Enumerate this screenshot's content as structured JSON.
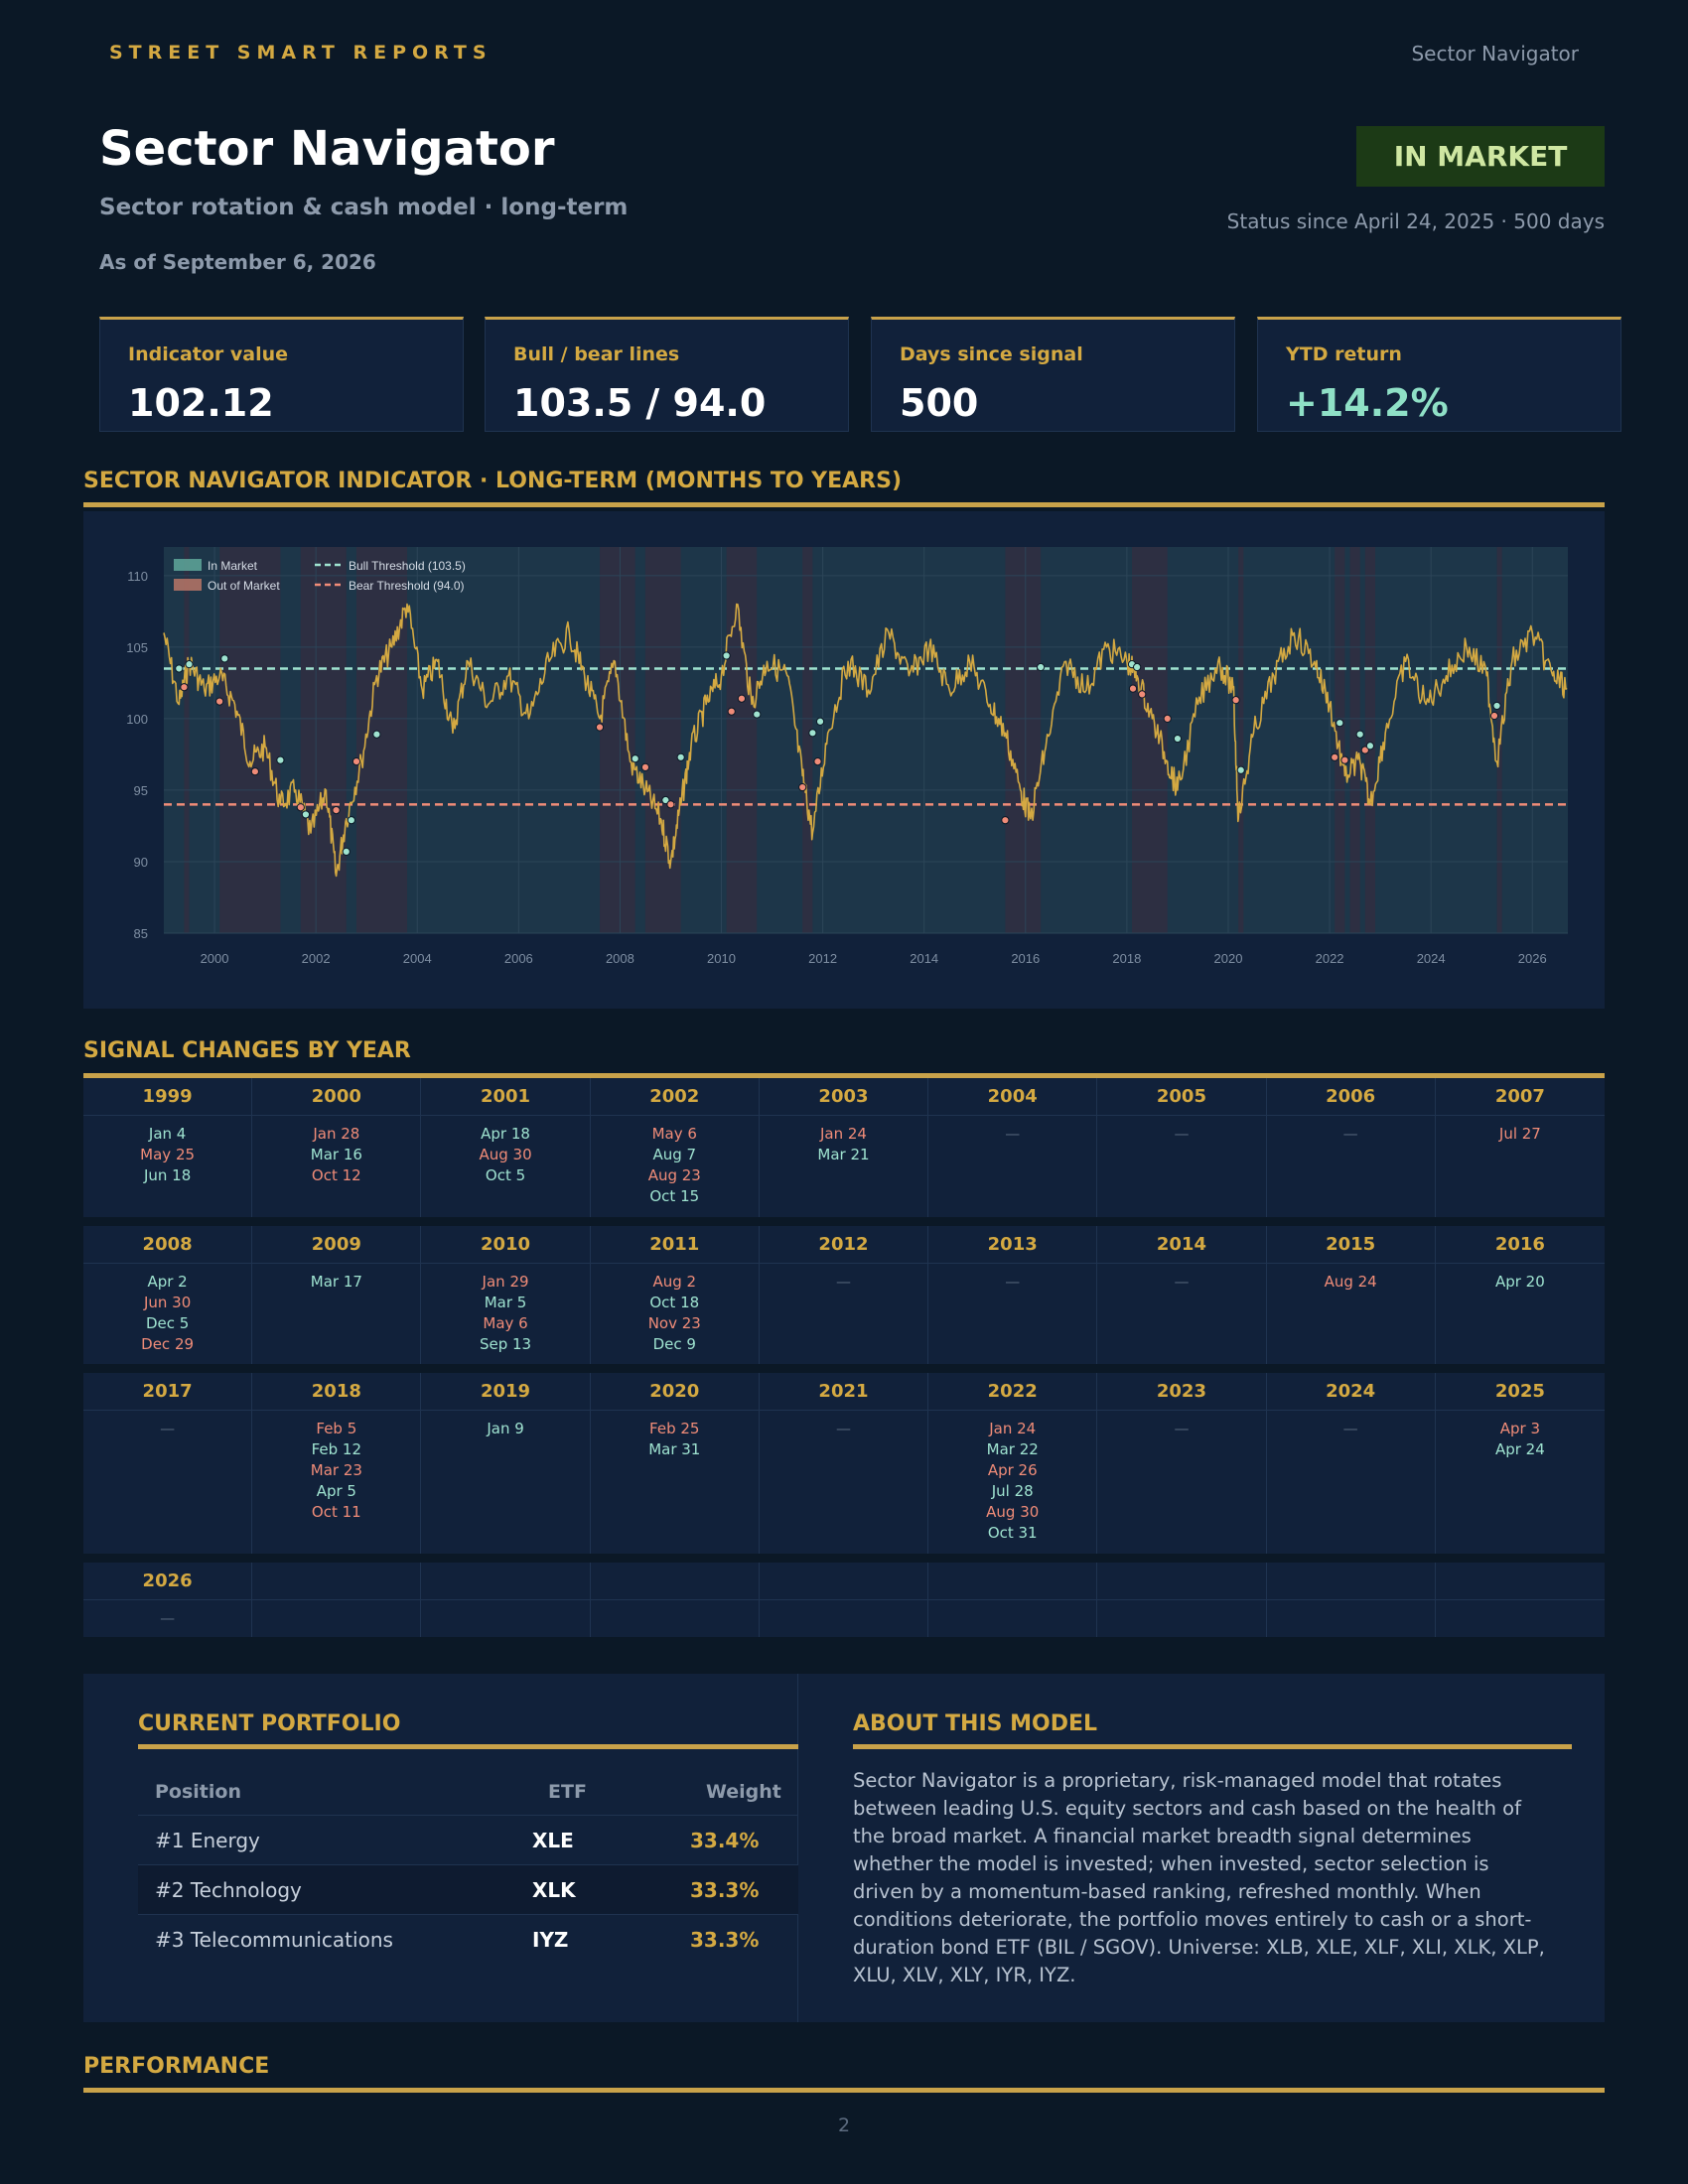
{
  "header": {
    "brand": "STREET SMART REPORTS",
    "top_right": "Sector Navigator",
    "title": "Sector Navigator",
    "subtitle": "Sector rotation & cash model · long-term",
    "as_of": "As of September 6, 2026",
    "status": "IN MARKET",
    "status_since": "Status since April 24, 2025 · 500 days"
  },
  "kpis": [
    {
      "label": "Indicator value",
      "value": "102.12"
    },
    {
      "label": "Bull / bear lines",
      "value": "103.5 / 94.0"
    },
    {
      "label": "Days since signal",
      "value": "500"
    },
    {
      "label": "YTD return",
      "value": "+14.2%"
    }
  ],
  "chart_section_title": "SECTOR NAVIGATOR INDICATOR · LONG-TERM (MONTHS TO YEARS)",
  "chart_data": {
    "type": "line",
    "title": "",
    "xlabel": "",
    "ylabel": "",
    "xlim": [
      1999,
      2026.7
    ],
    "ylim": [
      85,
      112
    ],
    "x_ticks": [
      "2000",
      "2002",
      "2004",
      "2006",
      "2008",
      "2010",
      "2012",
      "2014",
      "2016",
      "2018",
      "2020",
      "2022",
      "2024",
      "2026"
    ],
    "y_ticks": [
      "85",
      "90",
      "95",
      "100",
      "105",
      "110"
    ],
    "grid": true,
    "legend": {
      "placement": "top-left",
      "entries": [
        "In Market",
        "Out of Market",
        "Bull Threshold (103.5)",
        "Bear Threshold (94.0)"
      ]
    },
    "bull_threshold": 103.5,
    "bear_threshold": 94.0,
    "series": [
      {
        "x": [
          1999.0,
          1999.3,
          1999.5,
          1999.8,
          2000.1,
          2000.4,
          2000.7,
          2001.0,
          2001.3,
          2001.6,
          2001.9,
          2002.2,
          2002.4,
          2002.6,
          2002.9,
          2003.2,
          2003.5,
          2003.8,
          2004.1,
          2004.4,
          2004.7,
          2005.0,
          2005.4,
          2005.8,
          2006.2,
          2006.6,
          2007.0,
          2007.3,
          2007.6,
          2007.9,
          2008.2,
          2008.5,
          2008.8,
          2009.0,
          2009.2,
          2009.4,
          2009.7,
          2010.0,
          2010.3,
          2010.6,
          2010.9,
          2011.3,
          2011.6,
          2011.8,
          2012.1,
          2012.5,
          2012.9,
          2013.3,
          2013.7,
          2014.1,
          2014.5,
          2014.9,
          2015.3,
          2015.6,
          2015.9,
          2016.1,
          2016.4,
          2016.8,
          2017.2,
          2017.6,
          2018.0,
          2018.2,
          2018.5,
          2018.8,
          2019.0,
          2019.4,
          2019.8,
          2020.1,
          2020.2,
          2020.5,
          2020.9,
          2021.3,
          2021.7,
          2022.0,
          2022.3,
          2022.6,
          2022.8,
          2023.1,
          2023.5,
          2023.9,
          2024.3,
          2024.7,
          2025.1,
          2025.3,
          2025.6,
          2026.0,
          2026.4,
          2026.68
        ],
        "y": [
          106,
          101,
          104,
          102,
          103,
          101,
          97,
          98,
          94,
          95,
          92,
          95,
          89,
          93,
          97,
          103,
          105,
          108,
          102,
          104,
          99,
          104,
          101,
          103,
          100,
          104,
          106,
          103,
          100,
          104,
          97,
          95,
          93,
          90,
          94,
          98,
          101,
          103,
          108,
          101,
          104,
          103,
          96,
          92,
          99,
          104,
          102,
          106,
          103,
          105,
          102,
          104,
          101,
          99,
          95,
          93,
          98,
          104,
          102,
          105,
          104,
          103,
          100,
          97,
          95,
          101,
          104,
          102,
          93,
          99,
          103,
          106,
          104,
          101,
          96,
          97,
          94,
          99,
          104,
          101,
          103,
          105,
          103,
          97,
          104,
          106,
          103,
          102.12
        ]
      }
    ],
    "out_of_market_periods": [
      [
        1999.4,
        1999.5
      ],
      [
        2000.1,
        2001.3
      ],
      [
        2001.7,
        2002.6
      ],
      [
        2002.8,
        2003.8
      ],
      [
        2007.6,
        2008.3
      ],
      [
        2008.5,
        2009.2
      ],
      [
        2010.1,
        2010.7
      ],
      [
        2011.6,
        2011.8
      ],
      [
        2015.6,
        2016.3
      ],
      [
        2018.1,
        2018.8
      ],
      [
        2020.2,
        2020.3
      ],
      [
        2022.1,
        2022.3
      ],
      [
        2022.4,
        2022.6
      ],
      [
        2022.7,
        2022.9
      ],
      [
        2025.3,
        2025.4
      ]
    ],
    "signal_markers": [
      {
        "x": 1999.3,
        "y": 103.5,
        "type": "bull"
      },
      {
        "x": 1999.4,
        "y": 102.2,
        "type": "bear"
      },
      {
        "x": 1999.5,
        "y": 103.8,
        "type": "bull"
      },
      {
        "x": 2000.1,
        "y": 101.2,
        "type": "bear"
      },
      {
        "x": 2000.2,
        "y": 104.2,
        "type": "bull"
      },
      {
        "x": 2000.8,
        "y": 96.3,
        "type": "bear"
      },
      {
        "x": 2001.3,
        "y": 97.1,
        "type": "bull"
      },
      {
        "x": 2001.7,
        "y": 93.8,
        "type": "bear"
      },
      {
        "x": 2001.8,
        "y": 93.3,
        "type": "bull"
      },
      {
        "x": 2002.4,
        "y": 93.6,
        "type": "bear"
      },
      {
        "x": 2002.6,
        "y": 90.7,
        "type": "bull"
      },
      {
        "x": 2002.7,
        "y": 92.9,
        "type": "bull"
      },
      {
        "x": 2002.8,
        "y": 97.0,
        "type": "bear"
      },
      {
        "x": 2003.2,
        "y": 98.9,
        "type": "bull"
      },
      {
        "x": 2007.6,
        "y": 99.4,
        "type": "bear"
      },
      {
        "x": 2008.3,
        "y": 97.2,
        "type": "bull"
      },
      {
        "x": 2008.5,
        "y": 96.6,
        "type": "bear"
      },
      {
        "x": 2008.9,
        "y": 94.3,
        "type": "bull"
      },
      {
        "x": 2009.0,
        "y": 94.0,
        "type": "bear"
      },
      {
        "x": 2009.2,
        "y": 97.3,
        "type": "bull"
      },
      {
        "x": 2010.1,
        "y": 104.4,
        "type": "bull"
      },
      {
        "x": 2010.2,
        "y": 100.5,
        "type": "bear"
      },
      {
        "x": 2010.4,
        "y": 101.4,
        "type": "bear"
      },
      {
        "x": 2010.7,
        "y": 100.3,
        "type": "bull"
      },
      {
        "x": 2011.6,
        "y": 95.2,
        "type": "bear"
      },
      {
        "x": 2011.8,
        "y": 99.0,
        "type": "bull"
      },
      {
        "x": 2011.9,
        "y": 97.0,
        "type": "bear"
      },
      {
        "x": 2011.95,
        "y": 99.8,
        "type": "bull"
      },
      {
        "x": 2015.6,
        "y": 92.9,
        "type": "bear"
      },
      {
        "x": 2016.3,
        "y": 103.6,
        "type": "bull"
      },
      {
        "x": 2018.1,
        "y": 103.8,
        "type": "bull"
      },
      {
        "x": 2018.12,
        "y": 102.1,
        "type": "bear"
      },
      {
        "x": 2018.2,
        "y": 103.6,
        "type": "bull"
      },
      {
        "x": 2018.3,
        "y": 101.7,
        "type": "bear"
      },
      {
        "x": 2018.8,
        "y": 100.0,
        "type": "bear"
      },
      {
        "x": 2019.0,
        "y": 98.6,
        "type": "bull"
      },
      {
        "x": 2020.15,
        "y": 101.3,
        "type": "bear"
      },
      {
        "x": 2020.25,
        "y": 96.4,
        "type": "bull"
      },
      {
        "x": 2022.1,
        "y": 97.3,
        "type": "bear"
      },
      {
        "x": 2022.2,
        "y": 99.7,
        "type": "bull"
      },
      {
        "x": 2022.3,
        "y": 97.1,
        "type": "bear"
      },
      {
        "x": 2022.6,
        "y": 98.9,
        "type": "bull"
      },
      {
        "x": 2022.7,
        "y": 97.8,
        "type": "bear"
      },
      {
        "x": 2022.8,
        "y": 98.1,
        "type": "bull"
      },
      {
        "x": 2025.25,
        "y": 100.2,
        "type": "bear"
      },
      {
        "x": 2025.3,
        "y": 100.9,
        "type": "bull"
      }
    ]
  },
  "signals_section_title": "SIGNAL CHANGES BY YEAR",
  "signal_rows": [
    [
      {
        "year": "1999",
        "dates": [
          {
            "t": "Jan 4",
            "k": "bull"
          },
          {
            "t": "May 25",
            "k": "bear"
          },
          {
            "t": "Jun 18",
            "k": "bull"
          }
        ]
      },
      {
        "year": "2000",
        "dates": [
          {
            "t": "Jan 28",
            "k": "bear"
          },
          {
            "t": "Mar 16",
            "k": "bull"
          },
          {
            "t": "Oct 12",
            "k": "bear"
          }
        ]
      },
      {
        "year": "2001",
        "dates": [
          {
            "t": "Apr 18",
            "k": "bull"
          },
          {
            "t": "Aug 30",
            "k": "bear"
          },
          {
            "t": "Oct 5",
            "k": "bull"
          }
        ]
      },
      {
        "year": "2002",
        "dates": [
          {
            "t": "May 6",
            "k": "bear"
          },
          {
            "t": "Aug 7",
            "k": "bull"
          },
          {
            "t": "Aug 23",
            "k": "bear"
          },
          {
            "t": "Oct 15",
            "k": "bull"
          }
        ]
      },
      {
        "year": "2003",
        "dates": [
          {
            "t": "Jan 24",
            "k": "bear"
          },
          {
            "t": "Mar 21",
            "k": "bull"
          }
        ]
      },
      {
        "year": "2004",
        "dates": [
          {
            "t": "—",
            "k": "none"
          }
        ]
      },
      {
        "year": "2005",
        "dates": [
          {
            "t": "—",
            "k": "none"
          }
        ]
      },
      {
        "year": "2006",
        "dates": [
          {
            "t": "—",
            "k": "none"
          }
        ]
      },
      {
        "year": "2007",
        "dates": [
          {
            "t": "Jul 27",
            "k": "bear"
          }
        ]
      }
    ],
    [
      {
        "year": "2008",
        "dates": [
          {
            "t": "Apr 2",
            "k": "bull"
          },
          {
            "t": "Jun 30",
            "k": "bear"
          },
          {
            "t": "Dec 5",
            "k": "bull"
          },
          {
            "t": "Dec 29",
            "k": "bear"
          }
        ]
      },
      {
        "year": "2009",
        "dates": [
          {
            "t": "Mar 17",
            "k": "bull"
          }
        ]
      },
      {
        "year": "2010",
        "dates": [
          {
            "t": "Jan 29",
            "k": "bear"
          },
          {
            "t": "Mar 5",
            "k": "bull"
          },
          {
            "t": "May 6",
            "k": "bear"
          },
          {
            "t": "Sep 13",
            "k": "bull"
          }
        ]
      },
      {
        "year": "2011",
        "dates": [
          {
            "t": "Aug 2",
            "k": "bear"
          },
          {
            "t": "Oct 18",
            "k": "bull"
          },
          {
            "t": "Nov 23",
            "k": "bear"
          },
          {
            "t": "Dec 9",
            "k": "bull"
          }
        ]
      },
      {
        "year": "2012",
        "dates": [
          {
            "t": "—",
            "k": "none"
          }
        ]
      },
      {
        "year": "2013",
        "dates": [
          {
            "t": "—",
            "k": "none"
          }
        ]
      },
      {
        "year": "2014",
        "dates": [
          {
            "t": "—",
            "k": "none"
          }
        ]
      },
      {
        "year": "2015",
        "dates": [
          {
            "t": "Aug 24",
            "k": "bear"
          }
        ]
      },
      {
        "year": "2016",
        "dates": [
          {
            "t": "Apr 20",
            "k": "bull"
          }
        ]
      }
    ],
    [
      {
        "year": "2017",
        "dates": [
          {
            "t": "—",
            "k": "none"
          }
        ]
      },
      {
        "year": "2018",
        "dates": [
          {
            "t": "Feb 5",
            "k": "bear"
          },
          {
            "t": "Feb 12",
            "k": "bull"
          },
          {
            "t": "Mar 23",
            "k": "bear"
          },
          {
            "t": "Apr 5",
            "k": "bull"
          },
          {
            "t": "Oct 11",
            "k": "bear"
          }
        ]
      },
      {
        "year": "2019",
        "dates": [
          {
            "t": "Jan 9",
            "k": "bull"
          }
        ]
      },
      {
        "year": "2020",
        "dates": [
          {
            "t": "Feb 25",
            "k": "bear"
          },
          {
            "t": "Mar 31",
            "k": "bull"
          }
        ]
      },
      {
        "year": "2021",
        "dates": [
          {
            "t": "—",
            "k": "none"
          }
        ]
      },
      {
        "year": "2022",
        "dates": [
          {
            "t": "Jan 24",
            "k": "bear"
          },
          {
            "t": "Mar 22",
            "k": "bull"
          },
          {
            "t": "Apr 26",
            "k": "bear"
          },
          {
            "t": "Jul 28",
            "k": "bull"
          },
          {
            "t": "Aug 30",
            "k": "bear"
          },
          {
            "t": "Oct 31",
            "k": "bull"
          }
        ]
      },
      {
        "year": "2023",
        "dates": [
          {
            "t": "—",
            "k": "none"
          }
        ]
      },
      {
        "year": "2024",
        "dates": [
          {
            "t": "—",
            "k": "none"
          }
        ]
      },
      {
        "year": "2025",
        "dates": [
          {
            "t": "Apr 3",
            "k": "bear"
          },
          {
            "t": "Apr 24",
            "k": "bull"
          }
        ]
      }
    ],
    [
      {
        "year": "2026",
        "dates": [
          {
            "t": "—",
            "k": "none"
          }
        ]
      },
      {
        "year": "",
        "dates": []
      },
      {
        "year": "",
        "dates": []
      },
      {
        "year": "",
        "dates": []
      },
      {
        "year": "",
        "dates": []
      },
      {
        "year": "",
        "dates": []
      },
      {
        "year": "",
        "dates": []
      },
      {
        "year": "",
        "dates": []
      },
      {
        "year": "",
        "dates": []
      }
    ]
  ],
  "portfolio": {
    "title": "CURRENT PORTFOLIO",
    "headers": {
      "position": "Position",
      "etf": "ETF",
      "weight": "Weight"
    },
    "rows": [
      {
        "position": "#1 Energy",
        "etf": "XLE",
        "weight": "33.4%"
      },
      {
        "position": "#2 Technology",
        "etf": "XLK",
        "weight": "33.3%"
      },
      {
        "position": "#3 Telecommunications",
        "etf": "IYZ",
        "weight": "33.3%"
      }
    ]
  },
  "about": {
    "title": "ABOUT THIS MODEL",
    "text": "Sector Navigator is a proprietary, risk-managed model that rotates between leading U.S. equity sectors and cash based on the health of the broad market. A financial market breadth signal determines whether the model is invested; when invested, sector selection is driven by a momentum-based ranking, refreshed monthly. When conditions deteriorate, the portfolio moves entirely to cash or a short-duration bond ETF (BIL / SGOV). Universe: XLB, XLE, XLF, XLI, XLK, XLP, XLU, XLV, XLY, IYR, IYZ."
  },
  "performance_title": "PERFORMANCE",
  "page_number": "2",
  "colors": {
    "gold": "#c9a24a",
    "bull": "#9fe3d0",
    "bear": "#f08c78",
    "line": "#d4a942",
    "in_market_badge": "#1c3a16"
  }
}
